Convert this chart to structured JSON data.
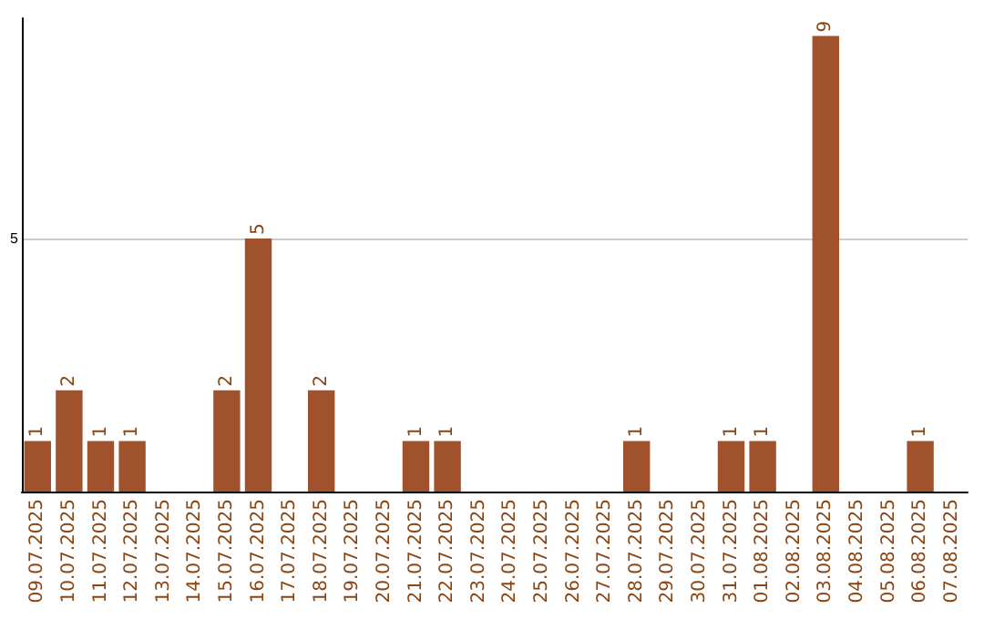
{
  "chart_data": {
    "type": "bar",
    "categories": [
      "09.07.2025",
      "10.07.2025",
      "11.07.2025",
      "12.07.2025",
      "13.07.2025",
      "14.07.2025",
      "15.07.2025",
      "16.07.2025",
      "17.07.2025",
      "18.07.2025",
      "19.07.2025",
      "20.07.2025",
      "21.07.2025",
      "22.07.2025",
      "23.07.2025",
      "24.07.2025",
      "25.07.2025",
      "26.07.2025",
      "27.07.2025",
      "28.07.2025",
      "29.07.2025",
      "30.07.2025",
      "31.07.2025",
      "01.08.2025",
      "02.08.2025",
      "03.08.2025",
      "04.08.2025",
      "05.08.2025",
      "06.08.2025",
      "07.08.2025"
    ],
    "values": [
      1,
      2,
      1,
      1,
      0,
      0,
      2,
      5,
      0,
      2,
      0,
      0,
      1,
      1,
      0,
      0,
      0,
      0,
      0,
      1,
      0,
      0,
      1,
      1,
      0,
      9,
      0,
      0,
      1,
      0
    ],
    "value_labels": [
      "1",
      "2",
      "1",
      "1",
      null,
      null,
      "2",
      "5",
      null,
      "2",
      null,
      null,
      "1",
      "1",
      null,
      null,
      null,
      null,
      null,
      "1",
      null,
      null,
      "1",
      "1",
      null,
      "9",
      null,
      null,
      "1",
      null
    ],
    "color": "#a0522d",
    "ylim": [
      0,
      9.35
    ],
    "yticks": [
      5
    ],
    "grid": "y"
  }
}
